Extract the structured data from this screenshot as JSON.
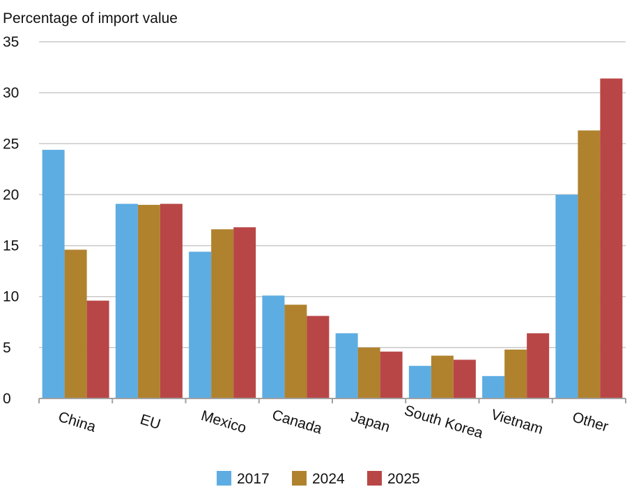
{
  "chart_data": {
    "type": "bar",
    "ylabel": "Percentage of import value",
    "ylim": [
      0,
      35
    ],
    "yticks": [
      0,
      5,
      10,
      15,
      20,
      25,
      30,
      35
    ],
    "grid": true,
    "legend_position": "bottom",
    "categories": [
      "China",
      "EU",
      "Mexico",
      "Canada",
      "Japan",
      "South Korea",
      "Vietnam",
      "Other"
    ],
    "series": [
      {
        "name": "2017",
        "color": "#5dade2",
        "values": [
          24.4,
          19.1,
          14.4,
          10.1,
          6.4,
          3.2,
          2.2,
          20.0
        ]
      },
      {
        "name": "2024",
        "color": "#b0822e",
        "values": [
          14.6,
          19.0,
          16.6,
          9.2,
          5.0,
          4.2,
          4.8,
          26.3
        ]
      },
      {
        "name": "2025",
        "color": "#b94646",
        "values": [
          9.6,
          19.1,
          16.8,
          8.1,
          4.6,
          3.8,
          6.4,
          31.4
        ]
      }
    ]
  }
}
